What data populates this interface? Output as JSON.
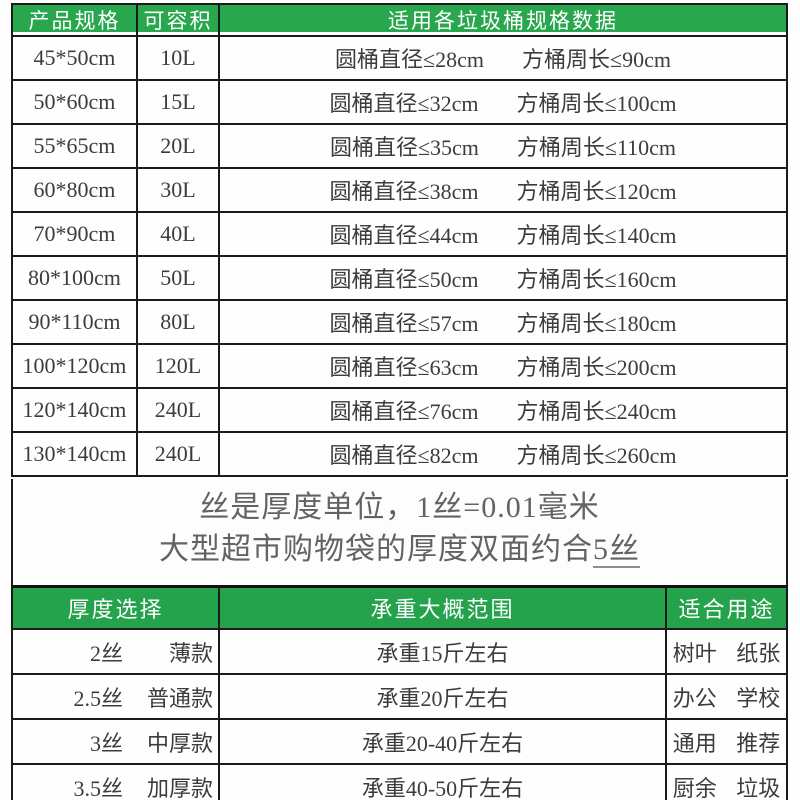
{
  "colors": {
    "header_green_top": "#28a74e",
    "header_green_bottom": "#25a24c",
    "border_dark": "#1b1b1b",
    "cell_text": "#3c3c3c",
    "note_gray": "#636363"
  },
  "table1": {
    "headers": [
      "产品规格",
      "可容积",
      "适用各垃圾桶规格数据"
    ],
    "rows": [
      {
        "spec": "45*50cm",
        "capacity": "10L",
        "round": "圆桶直径≤28cm",
        "square": "方桶周长≤90cm"
      },
      {
        "spec": "50*60cm",
        "capacity": "15L",
        "round": "圆桶直径≤32cm",
        "square": "方桶周长≤100cm"
      },
      {
        "spec": "55*65cm",
        "capacity": "20L",
        "round": "圆桶直径≤35cm",
        "square": "方桶周长≤110cm"
      },
      {
        "spec": "60*80cm",
        "capacity": "30L",
        "round": "圆桶直径≤38cm",
        "square": "方桶周长≤120cm"
      },
      {
        "spec": "70*90cm",
        "capacity": "40L",
        "round": "圆桶直径≤44cm",
        "square": "方桶周长≤140cm"
      },
      {
        "spec": "80*100cm",
        "capacity": "50L",
        "round": "圆桶直径≤50cm",
        "square": "方桶周长≤160cm"
      },
      {
        "spec": "90*110cm",
        "capacity": "80L",
        "round": "圆桶直径≤57cm",
        "square": "方桶周长≤180cm"
      },
      {
        "spec": "100*120cm",
        "capacity": "120L",
        "round": "圆桶直径≤63cm",
        "square": "方桶周长≤200cm"
      },
      {
        "spec": "120*140cm",
        "capacity": "240L",
        "round": "圆桶直径≤76cm",
        "square": "方桶周长≤240cm"
      },
      {
        "spec": "130*140cm",
        "capacity": "240L",
        "round": "圆桶直径≤82cm",
        "square": "方桶周长≤260cm"
      }
    ]
  },
  "note": {
    "line1": "丝是厚度单位，1丝=0.01毫米",
    "line2_main": "大型超市购物袋的厚度双面约合",
    "line2_em": "5丝"
  },
  "table2": {
    "headers": [
      "厚度选择",
      "承重大概范围",
      "适合用途"
    ],
    "rows": [
      {
        "thickness": "2丝",
        "style": "薄款",
        "load": "承重15斤左右",
        "use": "树叶 纸张"
      },
      {
        "thickness": "2.5丝",
        "style": "普通款",
        "load": "承重20斤左右",
        "use": "办公 学校"
      },
      {
        "thickness": "3丝",
        "style": "中厚款",
        "load": "承重20-40斤左右",
        "use": "通用 推荐"
      },
      {
        "thickness": "3.5丝",
        "style": "加厚款",
        "load": "承重40-50斤左右",
        "use": "厨余 垃圾"
      }
    ]
  }
}
